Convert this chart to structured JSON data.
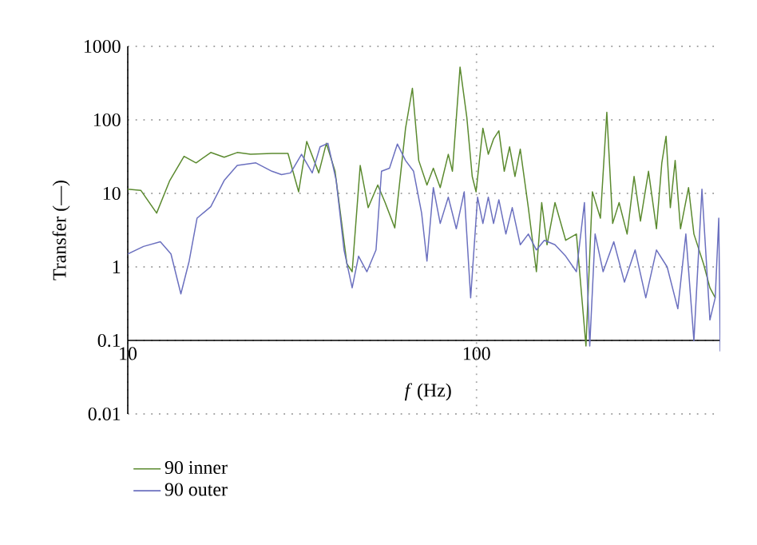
{
  "chart_data": {
    "type": "line",
    "xlabel": "*f* (Hz)",
    "ylabel": "Transfer (—)",
    "log": "xy",
    "grid": true,
    "legend": "bottom left",
    "line_style": "solid",
    "marker": "none",
    "xlim": [
      10,
      500
    ],
    "ylim": [
      0.01,
      1000
    ],
    "xticks": [
      10,
      100
    ],
    "yticks": [
      0.01,
      0.1,
      1,
      10,
      100,
      1000
    ],
    "series": [
      {
        "name": "90 inner",
        "color": "#5b8a2f",
        "x": [
          10.0,
          10.9,
          12.1,
          13.2,
          14.5,
          15.7,
          17.3,
          18.9,
          20.6,
          22.5,
          25.9,
          28.8,
          30.9,
          32.6,
          35.3,
          37.1,
          39.3,
          42.5,
          44.0,
          46.4,
          48.9,
          52.1,
          54.7,
          58.3,
          62.6,
          65.5,
          68.3,
          72.1,
          75.2,
          78.7,
          83.0,
          85.3,
          89.7,
          93.8,
          97.2,
          99.7,
          104.3,
          108.1,
          111.9,
          115.9,
          120.1,
          124.4,
          128.9,
          133.5,
          140.8,
          148.5,
          153.8,
          159.3,
          167.9,
          180.2,
          193.4,
          206.0,
          214.9,
          226.6,
          236.4,
          245.7,
          256.4,
          270.3,
          283.0,
          295.2,
          311.3,
          328.1,
          339.9,
          349.6,
          359.6,
          371.2,
          384.6,
          405.5,
          420.1,
          447.7,
          466.9,
          483.6
        ],
        "values": [
          11.4,
          11,
          5.4,
          15,
          32,
          26,
          36,
          31,
          36,
          34,
          35,
          35,
          10.5,
          51,
          19,
          48,
          20,
          1.1,
          0.86,
          24,
          6.4,
          13,
          7.5,
          3.4,
          77,
          269,
          28,
          13,
          22,
          12,
          34,
          20,
          523,
          108,
          17,
          10.5,
          77,
          34,
          55,
          71,
          20,
          43,
          17,
          40,
          6.4,
          0.86,
          7.5,
          2.0,
          7.5,
          2.3,
          2.8,
          0.084,
          10.5,
          4.6,
          127,
          3.9,
          7.5,
          2.8,
          17,
          4.2,
          20,
          3.3,
          26,
          60,
          6.4,
          28,
          3.3,
          12,
          2.8,
          1.1,
          0.52,
          0.38
        ]
      },
      {
        "name": "90 outer",
        "color": "#6b70bf",
        "x": [
          10.0,
          11.1,
          12.4,
          13.3,
          14.2,
          15.0,
          15.8,
          17.3,
          18.9,
          20.6,
          23.3,
          25.9,
          27.6,
          29.3,
          31.5,
          33.8,
          35.6,
          37.5,
          39.6,
          41.7,
          44.0,
          45.9,
          48.5,
          51.5,
          53.4,
          56.3,
          59.3,
          62.6,
          66.0,
          69.6,
          72.1,
          75.2,
          78.7,
          83.0,
          87.5,
          92.2,
          96.2,
          100.7,
          104.3,
          108.1,
          111.9,
          115.9,
          121.4,
          126.6,
          133.5,
          140.8,
          148.5,
          156.5,
          167.9,
          180.2,
          193.4,
          203.9,
          211.2,
          218.8,
          230.7,
          247.5,
          265.6,
          285.0,
          305.8,
          328.1,
          352.1,
          377.8,
          398.4,
          420.1,
          443.0,
          466.9,
          483.6,
          495,
          500
        ],
        "values": [
          1.5,
          1.9,
          2.2,
          1.5,
          0.43,
          1.2,
          4.6,
          6.6,
          15,
          24,
          26,
          20,
          18,
          19,
          34,
          19,
          43,
          48,
          15,
          1.7,
          0.52,
          1.4,
          0.86,
          1.7,
          20,
          22,
          47,
          28,
          20,
          5.4,
          1.2,
          12,
          3.9,
          8.9,
          3.3,
          10.5,
          0.38,
          8.9,
          3.9,
          8.9,
          3.9,
          8.2,
          2.8,
          6.4,
          2.0,
          2.8,
          1.7,
          2.3,
          2.0,
          1.4,
          0.86,
          7.5,
          0.084,
          2.8,
          0.86,
          2.2,
          0.62,
          1.7,
          0.38,
          1.7,
          1.0,
          0.27,
          2.8,
          0.099,
          11.4,
          0.19,
          0.38,
          4.6,
          0.071
        ]
      }
    ]
  }
}
